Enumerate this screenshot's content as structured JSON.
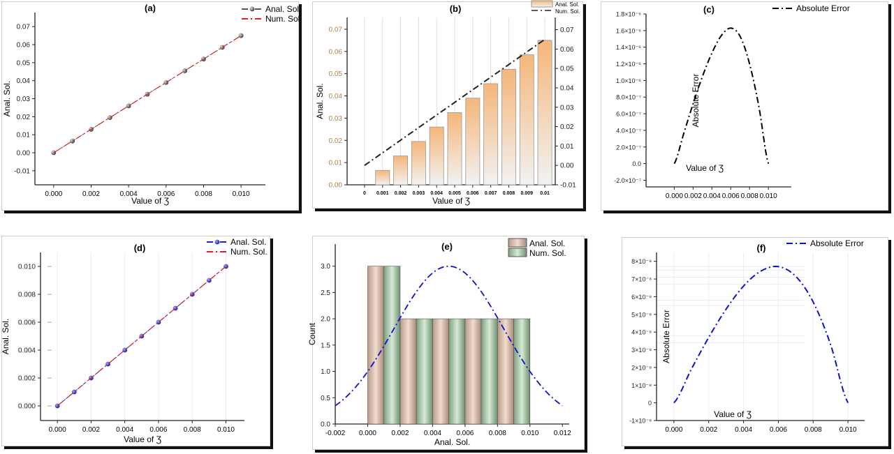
{
  "chart_data": [
    {
      "id": "a",
      "type": "line",
      "title": "(a)",
      "xlabel": "Value of Ʒ",
      "ylabel": "Anal. Sol.",
      "xlim": [
        -0.001,
        0.0113
      ],
      "ylim": [
        -0.0178,
        0.0778
      ],
      "xticks": [
        0,
        0.002,
        0.004,
        0.006,
        0.008,
        0.01
      ],
      "xtick_labels": [
        "0.000",
        "0.002",
        "0.004",
        "0.006",
        "0.008",
        "0.010"
      ],
      "yticks": [
        -0.01,
        0,
        0.01,
        0.02,
        0.03,
        0.04,
        0.05,
        0.06,
        0.07
      ],
      "ytick_labels": [
        "-0.01",
        "0.00",
        "0.01",
        "0.02",
        "0.03",
        "0.04",
        "0.05",
        "0.06",
        "0.07"
      ],
      "x": [
        0,
        0.001,
        0.002,
        0.003,
        0.004,
        0.005,
        0.006,
        0.007,
        0.008,
        0.009,
        0.01
      ],
      "series": [
        {
          "name": "Anal. Sol.",
          "style": "dots",
          "color": "#555555",
          "values": [
            0,
            0.0065,
            0.013,
            0.0195,
            0.026,
            0.0325,
            0.039,
            0.0455,
            0.052,
            0.0585,
            0.065
          ]
        },
        {
          "name": "Num. Sol.",
          "style": "dashdot",
          "color": "#e02020",
          "values": [
            0,
            0.0065,
            0.013,
            0.0195,
            0.026,
            0.0325,
            0.039,
            0.0455,
            0.052,
            0.0585,
            0.065
          ]
        }
      ],
      "legend": "top-right",
      "grid": false
    },
    {
      "id": "b",
      "type": "bar",
      "title": "(b)",
      "xlabel": "Value of Ʒ",
      "ylabel": "Anal. Sol.",
      "y2label": "Num. Sol.",
      "ylim": [
        0,
        0.0753
      ],
      "y2lim": [
        -0.01,
        0.0763
      ],
      "categories": [
        "0",
        "0.001",
        "0.002",
        "0.003",
        "0.004",
        "0.005",
        "0.006",
        "0.007",
        "0.008",
        "0.009",
        "0.01"
      ],
      "yticks": [
        0,
        0.01,
        0.02,
        0.03,
        0.04,
        0.05,
        0.06,
        0.07
      ],
      "ytick_labels": [
        "0.00",
        "0.01",
        "0.02",
        "0.03",
        "0.04",
        "0.05",
        "0.06",
        "0.07"
      ],
      "y2ticks": [
        -0.01,
        0,
        0.01,
        0.02,
        0.03,
        0.04,
        0.05,
        0.06,
        0.07
      ],
      "y2tick_labels": [
        "-0.01",
        "0.00",
        "0.01",
        "0.02",
        "0.03",
        "0.04",
        "0.05",
        "0.06",
        "0.07"
      ],
      "series": [
        {
          "name": "Anal. Sol.",
          "style": "bars",
          "color": "#f5b67a",
          "values": [
            0,
            0.0065,
            0.013,
            0.0195,
            0.026,
            0.0325,
            0.039,
            0.0455,
            0.052,
            0.0585,
            0.065
          ]
        },
        {
          "name": "Num. Sol.",
          "style": "dashdot",
          "axis": "right",
          "color": "#222222",
          "values": [
            0,
            0.0065,
            0.013,
            0.0195,
            0.026,
            0.0325,
            0.039,
            0.0455,
            0.052,
            0.0585,
            0.065
          ]
        }
      ],
      "legend": "top-right",
      "grid": true
    },
    {
      "id": "c",
      "type": "line",
      "title": "(c)",
      "xlabel": "Value of Ʒ",
      "ylabel": "Absolute Error",
      "xlim": [
        -0.003,
        0.01244
      ],
      "ylim": [
        -2.8e-07,
        1.8e-06
      ],
      "xticks": [
        0,
        0.002,
        0.004,
        0.006,
        0.008,
        0.01
      ],
      "xtick_labels": [
        "0.000",
        "0.002",
        "0.004",
        "0.006",
        "0.008",
        "0.010"
      ],
      "yticks": [
        -2e-07,
        0,
        2e-07,
        4e-07,
        6e-07,
        8e-07,
        1e-06,
        1.2e-06,
        1.4e-06,
        1.6e-06,
        1.8e-06
      ],
      "ytick_labels": [
        "-2.0×10⁻⁷",
        "0.0",
        "2.0×10⁻⁷",
        "4.0×10⁻⁷",
        "6.0×10⁻⁷",
        "8.0×10⁻⁷",
        "1.0×10⁻⁶",
        "1.2×10⁻⁶",
        "1.4×10⁻⁶",
        "1.6×10⁻⁶",
        "1.8×10⁻⁶"
      ],
      "x": [
        0,
        0.001,
        0.002,
        0.003,
        0.004,
        0.005,
        0.006,
        0.007,
        0.008,
        0.009,
        0.01
      ],
      "series": [
        {
          "name": "Absolute Error",
          "style": "dashdot",
          "color": "#000000",
          "values": [
            0,
            3.6e-07,
            7.2e-07,
            1.05e-06,
            1.33e-06,
            1.54e-06,
            1.63e-06,
            1.53e-06,
            1.2e-06,
            6.8e-07,
            0
          ]
        }
      ],
      "legend": "top-right",
      "grid": false
    },
    {
      "id": "d",
      "type": "line",
      "title": "(d)",
      "xlabel": "Value of Ʒ",
      "ylabel": "Anal. Sol.",
      "xlim": [
        -0.001,
        0.0111
      ],
      "ylim": [
        -0.00105,
        0.011
      ],
      "xticks": [
        0,
        0.002,
        0.004,
        0.006,
        0.008,
        0.01
      ],
      "xtick_labels": [
        "0.000",
        "0.002",
        "0.004",
        "0.006",
        "0.008",
        "0.010"
      ],
      "yticks": [
        0,
        0.002,
        0.004,
        0.006,
        0.008,
        0.01
      ],
      "ytick_labels": [
        "0.000",
        "0.002",
        "0.004",
        "0.006",
        "0.008",
        "0.010"
      ],
      "x": [
        0,
        0.001,
        0.002,
        0.003,
        0.004,
        0.005,
        0.006,
        0.007,
        0.008,
        0.009,
        0.01
      ],
      "series": [
        {
          "name": "Anal. Sol.",
          "style": "dots",
          "color": "#2020d0",
          "values": [
            0,
            0.001,
            0.002,
            0.003,
            0.004,
            0.005,
            0.006,
            0.007,
            0.008,
            0.009,
            0.01
          ]
        },
        {
          "name": "Num. Sol.",
          "style": "dashdot",
          "color": "#e02020",
          "values": [
            0,
            0.001,
            0.002,
            0.003,
            0.004,
            0.005,
            0.006,
            0.007,
            0.008,
            0.009,
            0.01
          ]
        }
      ],
      "legend": "top-right",
      "grid": true
    },
    {
      "id": "e",
      "type": "bar",
      "title": "(e)",
      "xlabel": "Anal. Sol.",
      "ylabel": "Count",
      "xlim": [
        -0.002,
        0.01242
      ],
      "ylim": [
        0,
        3.42
      ],
      "xticks": [
        -0.002,
        0,
        0.002,
        0.004,
        0.006,
        0.008,
        0.01,
        0.012
      ],
      "xtick_labels": [
        "-0.002",
        "0.000",
        "0.002",
        "0.004",
        "0.006",
        "0.008",
        "0.010",
        "0.012"
      ],
      "yticks": [
        0,
        0.5,
        1,
        1.5,
        2,
        2.5,
        3
      ],
      "ytick_labels": [
        "0.0",
        "0.5",
        "1.0",
        "1.5",
        "2.0",
        "2.5",
        "3.0"
      ],
      "bins": [
        [
          0,
          0.002
        ],
        [
          0.002,
          0.004
        ],
        [
          0.004,
          0.006
        ],
        [
          0.006,
          0.008
        ],
        [
          0.008,
          0.01
        ]
      ],
      "series": [
        {
          "name": "Anal. Sol.",
          "style": "hist",
          "color": "#d9b9a0",
          "values": [
            3,
            2,
            2,
            2,
            2
          ]
        },
        {
          "name": "Num. Sol.",
          "style": "hist",
          "color": "#a8c8a8",
          "values": [
            3,
            2,
            2,
            2,
            2
          ]
        }
      ],
      "normal_curve": {
        "mean": 0.005,
        "sd": 0.00337,
        "peak": 3,
        "color": "#1010d0"
      },
      "legend": "top-right",
      "grid": false
    },
    {
      "id": "f",
      "type": "line",
      "title": "(f)",
      "xlabel": "Value of Ʒ",
      "ylabel": "Absolute Error",
      "xlim": [
        -0.001,
        0.01096
      ],
      "ylim": [
        -1e-08,
        8.5e-08
      ],
      "xticks": [
        0,
        0.002,
        0.004,
        0.006,
        0.008,
        0.01
      ],
      "xtick_labels": [
        "0.000",
        "0.002",
        "0.004",
        "0.006",
        "0.008",
        "0.010"
      ],
      "yticks": [
        -1e-08,
        0,
        1e-08,
        2e-08,
        3e-08,
        4e-08,
        5e-08,
        6e-08,
        7e-08,
        8e-08
      ],
      "ytick_labels": [
        "-1×10⁻⁸",
        "0",
        "1×10⁻⁸",
        "2×10⁻⁸",
        "3×10⁻⁸",
        "4×10⁻⁸",
        "5×10⁻⁸",
        "6×10⁻⁸",
        "7×10⁻⁸",
        "8×10⁻⁸"
      ],
      "x": [
        0,
        0.001,
        0.002,
        0.003,
        0.004,
        0.005,
        0.006,
        0.007,
        0.008,
        0.009,
        0.01
      ],
      "series": [
        {
          "name": "Absolute Error",
          "style": "dashdot",
          "color": "#1010d0",
          "values": [
            0,
            1.9e-08,
            3.7e-08,
            5.3e-08,
            6.6e-08,
            7.45e-08,
            7.7e-08,
            7.15e-08,
            5.7e-08,
            3.3e-08,
            0
          ]
        }
      ],
      "legend": "top-right",
      "grid": true
    }
  ]
}
